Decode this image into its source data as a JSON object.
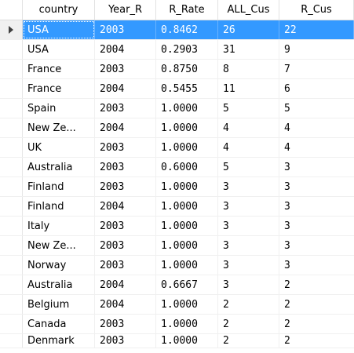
{
  "columns": [
    "country",
    "Year_R",
    "R_Rate",
    "ALL_Cus",
    "R_Cus"
  ],
  "rows": [
    [
      "USA",
      "2003",
      "0.8462",
      "26",
      "22"
    ],
    [
      "USA",
      "2004",
      "0.2903",
      "31",
      "9"
    ],
    [
      "France",
      "2003",
      "0.8750",
      "8",
      "7"
    ],
    [
      "France",
      "2004",
      "0.5455",
      "11",
      "6"
    ],
    [
      "Spain",
      "2003",
      "1.0000",
      "5",
      "5"
    ],
    [
      "New Ze...",
      "2004",
      "1.0000",
      "4",
      "4"
    ],
    [
      "UK",
      "2003",
      "1.0000",
      "4",
      "4"
    ],
    [
      "Australia",
      "2003",
      "0.6000",
      "5",
      "3"
    ],
    [
      "Finland",
      "2003",
      "1.0000",
      "3",
      "3"
    ],
    [
      "Finland",
      "2004",
      "1.0000",
      "3",
      "3"
    ],
    [
      "Italy",
      "2003",
      "1.0000",
      "3",
      "3"
    ],
    [
      "New Ze...",
      "2003",
      "1.0000",
      "3",
      "3"
    ],
    [
      "Norway",
      "2003",
      "1.0000",
      "3",
      "3"
    ],
    [
      "Australia",
      "2004",
      "0.6667",
      "3",
      "2"
    ],
    [
      "Belgium",
      "2004",
      "1.0000",
      "2",
      "2"
    ],
    [
      "Canada",
      "2003",
      "1.0000",
      "2",
      "2"
    ],
    [
      "Denmark",
      "2003",
      "1.0000",
      "2",
      "2"
    ]
  ],
  "selected_row": 0,
  "icons": {
    "row_indicator": "row-pointer-icon"
  },
  "colors": {
    "selection": "#3399ff",
    "selection_text": "#ffffff"
  }
}
